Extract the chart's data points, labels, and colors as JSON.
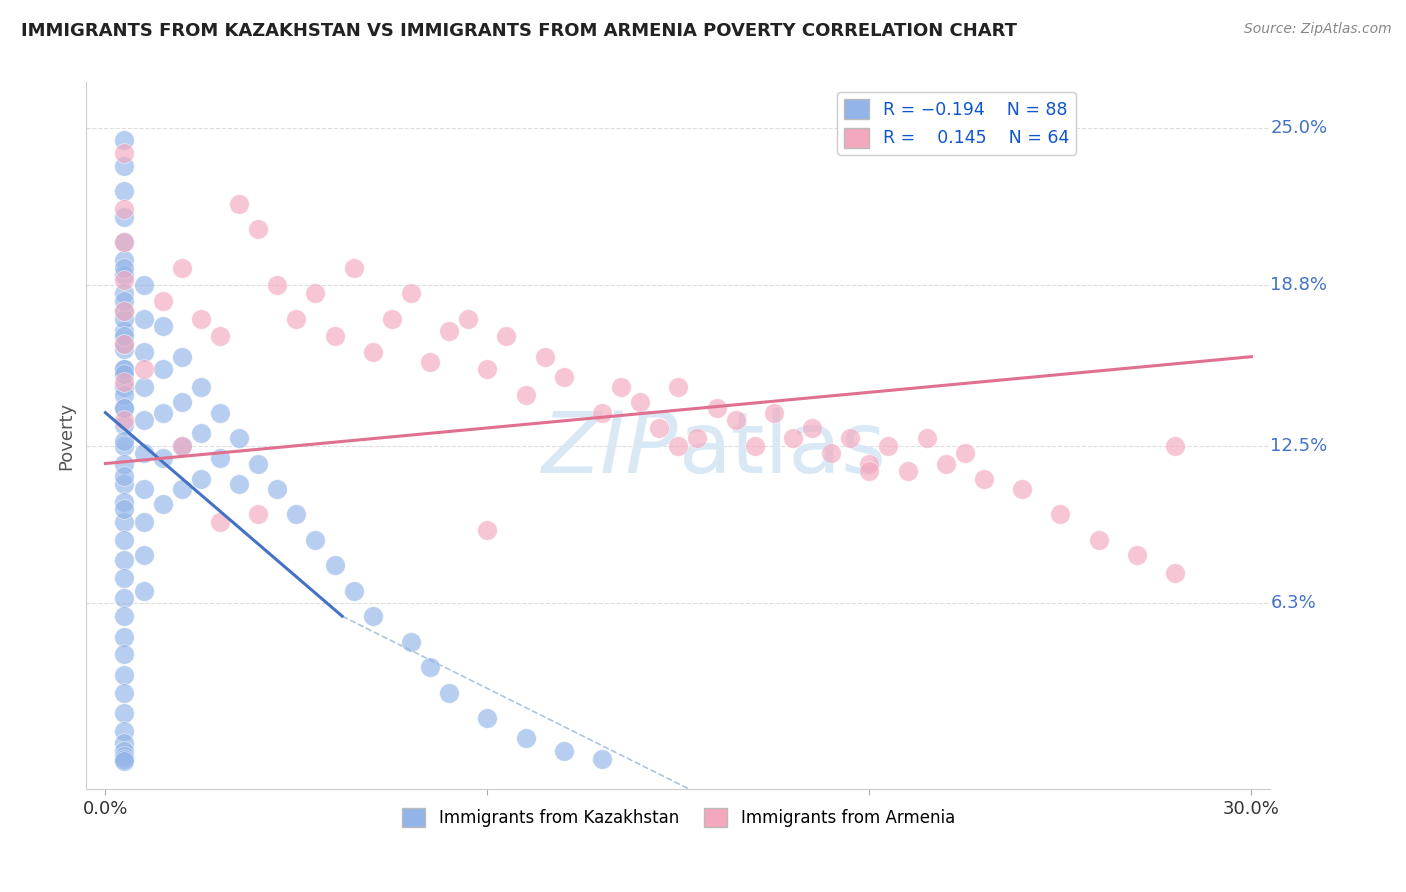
{
  "title": "IMMIGRANTS FROM KAZAKHSTAN VS IMMIGRANTS FROM ARMENIA POVERTY CORRELATION CHART",
  "source": "Source: ZipAtlas.com",
  "ylabel": "Poverty",
  "ytick_vals": [
    0.25,
    0.188,
    0.125,
    0.063
  ],
  "ytick_labels": [
    "25.0%",
    "18.8%",
    "12.5%",
    "6.3%"
  ],
  "xlim": [
    0.0,
    0.3
  ],
  "ylim": [
    0.0,
    0.265
  ],
  "color_kaz": "#92B4E8",
  "color_arm": "#F4A8BE",
  "color_kaz_line": "#4472C4",
  "color_arm_line": "#E07090",
  "color_diag": "#B0C4D8",
  "watermark_color": "#D8E8F5",
  "kaz_x": [
    0.005,
    0.005,
    0.005,
    0.005,
    0.005,
    0.005,
    0.005,
    0.005,
    0.005,
    0.005,
    0.005,
    0.005,
    0.005,
    0.005,
    0.005,
    0.005,
    0.005,
    0.005,
    0.005,
    0.005,
    0.005,
    0.005,
    0.005,
    0.005,
    0.005,
    0.005,
    0.005,
    0.005,
    0.005,
    0.005,
    0.005,
    0.005,
    0.005,
    0.005,
    0.005,
    0.005,
    0.005,
    0.005,
    0.005,
    0.005,
    0.01,
    0.01,
    0.01,
    0.01,
    0.01,
    0.01,
    0.01,
    0.01,
    0.01,
    0.01,
    0.015,
    0.015,
    0.015,
    0.015,
    0.015,
    0.02,
    0.02,
    0.02,
    0.02,
    0.025,
    0.025,
    0.025,
    0.03,
    0.03,
    0.035,
    0.035,
    0.04,
    0.045,
    0.05,
    0.055,
    0.06,
    0.065,
    0.07,
    0.08,
    0.085,
    0.09,
    0.1,
    0.11,
    0.12,
    0.13,
    0.005,
    0.005,
    0.005,
    0.005,
    0.005,
    0.005,
    0.005,
    0.005
  ],
  "kaz_y": [
    0.245,
    0.235,
    0.225,
    0.215,
    0.205,
    0.198,
    0.192,
    0.185,
    0.178,
    0.17,
    0.163,
    0.155,
    0.148,
    0.14,
    0.133,
    0.125,
    0.118,
    0.11,
    0.103,
    0.095,
    0.088,
    0.08,
    0.073,
    0.065,
    0.058,
    0.05,
    0.043,
    0.035,
    0.028,
    0.02,
    0.013,
    0.008,
    0.005,
    0.003,
    0.002,
    0.001,
    0.175,
    0.165,
    0.155,
    0.145,
    0.188,
    0.175,
    0.162,
    0.148,
    0.135,
    0.122,
    0.108,
    0.095,
    0.082,
    0.068,
    0.172,
    0.155,
    0.138,
    0.12,
    0.102,
    0.16,
    0.142,
    0.125,
    0.108,
    0.148,
    0.13,
    0.112,
    0.138,
    0.12,
    0.128,
    0.11,
    0.118,
    0.108,
    0.098,
    0.088,
    0.078,
    0.068,
    0.058,
    0.048,
    0.038,
    0.028,
    0.018,
    0.01,
    0.005,
    0.002,
    0.195,
    0.182,
    0.168,
    0.153,
    0.14,
    0.127,
    0.113,
    0.1
  ],
  "arm_x": [
    0.005,
    0.005,
    0.005,
    0.005,
    0.005,
    0.005,
    0.005,
    0.005,
    0.015,
    0.02,
    0.025,
    0.03,
    0.035,
    0.04,
    0.045,
    0.05,
    0.055,
    0.06,
    0.065,
    0.07,
    0.075,
    0.08,
    0.085,
    0.09,
    0.095,
    0.1,
    0.105,
    0.11,
    0.115,
    0.12,
    0.13,
    0.135,
    0.14,
    0.145,
    0.15,
    0.155,
    0.16,
    0.165,
    0.17,
    0.175,
    0.18,
    0.185,
    0.19,
    0.195,
    0.2,
    0.205,
    0.21,
    0.215,
    0.22,
    0.225,
    0.23,
    0.24,
    0.25,
    0.26,
    0.27,
    0.28,
    0.01,
    0.02,
    0.03,
    0.04,
    0.1,
    0.15,
    0.2,
    0.28
  ],
  "arm_y": [
    0.24,
    0.218,
    0.205,
    0.19,
    0.178,
    0.165,
    0.15,
    0.135,
    0.182,
    0.195,
    0.175,
    0.168,
    0.22,
    0.21,
    0.188,
    0.175,
    0.185,
    0.168,
    0.195,
    0.162,
    0.175,
    0.185,
    0.158,
    0.17,
    0.175,
    0.155,
    0.168,
    0.145,
    0.16,
    0.152,
    0.138,
    0.148,
    0.142,
    0.132,
    0.148,
    0.128,
    0.14,
    0.135,
    0.125,
    0.138,
    0.128,
    0.132,
    0.122,
    0.128,
    0.118,
    0.125,
    0.115,
    0.128,
    0.118,
    0.122,
    0.112,
    0.108,
    0.098,
    0.088,
    0.082,
    0.075,
    0.155,
    0.125,
    0.095,
    0.098,
    0.092,
    0.125,
    0.115,
    0.125
  ]
}
